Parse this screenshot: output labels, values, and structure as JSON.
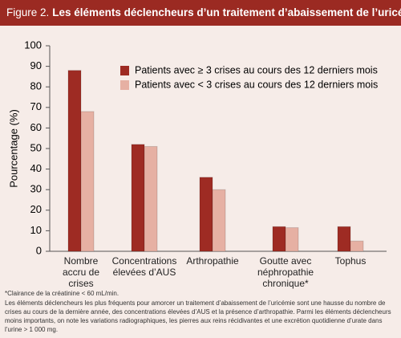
{
  "figure_label": "Figure 2.",
  "chart_data": {
    "type": "bar",
    "title": "Les éléments déclencheurs d’un traitement d’abaissement de l’uricémie",
    "y_label": "Pourcentage (%)",
    "categories": [
      "Nombre\naccru de\ncrises",
      "Concentrations\nélevées d’AUS",
      "Arthropathie",
      "Goutte avec\nnéphropathie\nchronique*",
      "Tophus"
    ],
    "series": [
      {
        "name": "Patients avec ≥ 3 crises au cours des 12 derniers mois",
        "color": "#9e2b23",
        "values": [
          88,
          52,
          36,
          12,
          12
        ]
      },
      {
        "name": "Patients avec < 3 crises au cours des 12 derniers mois",
        "color": "#e6b0a3",
        "values": [
          68,
          51,
          30,
          11.5,
          5
        ]
      }
    ],
    "ylim": [
      0,
      100
    ],
    "yticks": [
      0,
      10,
      20,
      30,
      40,
      50,
      60,
      70,
      80,
      90,
      100
    ],
    "legend": "top-right"
  },
  "footnote": "*Clairance de la créatinine < 60 mL/min.",
  "caption": "Les éléments déclencheurs les plus fréquents pour amorcer un traitement d’abaissement de l’uricémie sont une hausse du nombre de crises au cours de la dernière année, des concentrations élevées d’AUS et la présence d’arthropathie. Parmi les éléments déclencheurs moins importants, on note les variations radiographiques, les pierres aux reins récidivantes et une excrétion quotidienne d’urate dans l’urine > 1 000 mg."
}
